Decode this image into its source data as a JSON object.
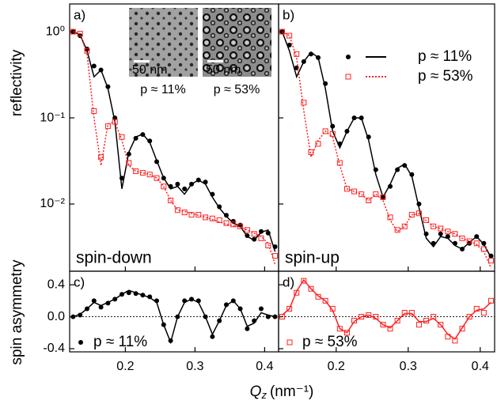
{
  "xlabel": {
    "symbol": "Q",
    "subscript": "z",
    "unit": "(nm⁻¹)"
  },
  "chart_data": [
    {
      "type": "line",
      "label": "a)",
      "note": "spin-down",
      "ylabel": "reflectivity",
      "log_y": true,
      "x": [
        0.125,
        0.135,
        0.145,
        0.155,
        0.165,
        0.175,
        0.185,
        0.195,
        0.205,
        0.215,
        0.225,
        0.235,
        0.245,
        0.255,
        0.265,
        0.275,
        0.285,
        0.295,
        0.305,
        0.315,
        0.325,
        0.335,
        0.345,
        0.355,
        0.365,
        0.375,
        0.385,
        0.395,
        0.405,
        0.415
      ],
      "xlim": [
        0.12,
        0.42
      ],
      "xticks": [
        0.2,
        0.3,
        0.4
      ],
      "x_tick_labels": false,
      "ylim": [
        0.00166,
        2.1
      ],
      "yticks": [
        {
          "value": 1,
          "label": "10⁰"
        },
        {
          "value": 0.1,
          "label": "10⁻¹"
        },
        {
          "value": 0.01,
          "label": "10⁻²"
        }
      ],
      "y_tick_labels": true,
      "insets": [
        {
          "scale": "50 nm",
          "caption": "p ≈ 11%"
        },
        {
          "scale": "50 nm",
          "caption": "p ≈ 53%"
        }
      ],
      "series": [
        {
          "name": "p ≈ 11%",
          "color": "#000000",
          "marker": "circle",
          "values": [
            1.0,
            0.9,
            0.63,
            0.4,
            0.36,
            0.23,
            0.1,
            0.02,
            0.038,
            0.058,
            0.064,
            0.054,
            0.031,
            0.02,
            0.016,
            0.017,
            0.015,
            0.017,
            0.019,
            0.018,
            0.013,
            0.0093,
            0.0074,
            0.0063,
            0.0057,
            0.0043,
            0.0039,
            0.0048,
            0.0046,
            0.0032
          ],
          "fit": {
            "style": "solid",
            "values": [
              1.0,
              0.92,
              0.6,
              0.3,
              0.36,
              0.22,
              0.09,
              0.015,
              0.04,
              0.06,
              0.065,
              0.052,
              0.032,
              0.02,
              0.015,
              0.016,
              0.013,
              0.017,
              0.019,
              0.017,
              0.012,
              0.009,
              0.0072,
              0.006,
              0.0055,
              0.0042,
              0.0038,
              0.0047,
              0.005,
              0.0028
            ]
          }
        },
        {
          "name": "p ≈ 53%",
          "color": "#ff2020",
          "marker": "square",
          "values": [
            1.0,
            0.95,
            0.6,
            0.12,
            0.035,
            0.08,
            0.09,
            0.06,
            0.03,
            0.024,
            0.023,
            0.022,
            0.02,
            0.016,
            0.011,
            0.0085,
            0.008,
            0.0075,
            0.0075,
            0.007,
            0.0068,
            0.0065,
            0.006,
            0.0058,
            0.0055,
            0.005,
            0.0045,
            0.004,
            0.0033,
            0.0025
          ],
          "fit": {
            "style": "dotted",
            "values": [
              1.0,
              0.95,
              0.55,
              0.1,
              0.028,
              0.085,
              0.09,
              0.055,
              0.028,
              0.024,
              0.023,
              0.022,
              0.02,
              0.016,
              0.011,
              0.0085,
              0.0082,
              0.0078,
              0.0074,
              0.007,
              0.0066,
              0.0062,
              0.0058,
              0.0056,
              0.0054,
              0.005,
              0.0046,
              0.0042,
              0.0035,
              0.002
            ]
          }
        }
      ]
    },
    {
      "type": "line",
      "label": "b)",
      "note": "spin-up",
      "log_y": true,
      "legend": "upper right",
      "legend_shows_fit": true,
      "x": [
        0.125,
        0.135,
        0.145,
        0.155,
        0.165,
        0.175,
        0.185,
        0.195,
        0.205,
        0.215,
        0.225,
        0.235,
        0.245,
        0.255,
        0.265,
        0.275,
        0.285,
        0.295,
        0.305,
        0.315,
        0.325,
        0.335,
        0.345,
        0.355,
        0.365,
        0.375,
        0.385,
        0.395,
        0.405,
        0.415
      ],
      "xlim": [
        0.12,
        0.42
      ],
      "xticks": [
        0.2,
        0.3,
        0.4
      ],
      "x_tick_labels": false,
      "ylim": [
        0.00166,
        2.1
      ],
      "yticks": [
        1,
        0.1,
        0.01
      ],
      "y_tick_labels": false,
      "series": [
        {
          "name": "p ≈ 11%",
          "color": "#000000",
          "marker": "circle",
          "values": [
            1.0,
            0.7,
            0.38,
            0.45,
            0.55,
            0.5,
            0.25,
            0.08,
            0.05,
            0.07,
            0.1,
            0.1,
            0.06,
            0.025,
            0.012,
            0.016,
            0.025,
            0.028,
            0.022,
            0.01,
            0.0045,
            0.0035,
            0.0045,
            0.0042,
            0.0035,
            0.003,
            0.0035,
            0.0042,
            0.0035,
            0.0025
          ],
          "fit": {
            "style": "solid",
            "values": [
              1.0,
              0.6,
              0.3,
              0.45,
              0.58,
              0.5,
              0.22,
              0.07,
              0.045,
              0.07,
              0.1,
              0.1,
              0.055,
              0.022,
              0.012,
              0.017,
              0.026,
              0.029,
              0.021,
              0.009,
              0.004,
              0.0032,
              0.0042,
              0.004,
              0.0033,
              0.003,
              0.0036,
              0.0042,
              0.0034,
              0.0024
            ]
          }
        },
        {
          "name": "p ≈ 53%",
          "color": "#ff2020",
          "marker": "square",
          "values": [
            1.0,
            0.9,
            0.55,
            0.15,
            0.04,
            0.05,
            0.07,
            0.065,
            0.03,
            0.015,
            0.014,
            0.013,
            0.011,
            0.013,
            0.012,
            0.007,
            0.005,
            0.0055,
            0.0075,
            0.0078,
            0.0065,
            0.0055,
            0.0052,
            0.0048,
            0.0045,
            0.004,
            0.0037,
            0.0035,
            0.003,
            0.0022
          ],
          "fit": {
            "style": "dotted",
            "values": [
              1.0,
              0.9,
              0.5,
              0.12,
              0.035,
              0.055,
              0.07,
              0.06,
              0.028,
              0.015,
              0.014,
              0.013,
              0.011,
              0.013,
              0.011,
              0.0065,
              0.0048,
              0.0055,
              0.0075,
              0.0077,
              0.0064,
              0.0055,
              0.0052,
              0.0048,
              0.0045,
              0.004,
              0.0037,
              0.0034,
              0.0028,
              0.0018
            ]
          }
        }
      ]
    },
    {
      "type": "line",
      "label": "c)",
      "ylabel": "spin asymmetry",
      "zero_line": true,
      "legend": "lower left",
      "legend_shows_fit": false,
      "x": [
        0.125,
        0.135,
        0.145,
        0.155,
        0.165,
        0.175,
        0.185,
        0.195,
        0.205,
        0.215,
        0.225,
        0.235,
        0.245,
        0.255,
        0.265,
        0.275,
        0.285,
        0.295,
        0.305,
        0.315,
        0.325,
        0.335,
        0.345,
        0.355,
        0.365,
        0.375,
        0.385,
        0.395,
        0.405,
        0.415
      ],
      "xlim": [
        0.12,
        0.42
      ],
      "xticks": [
        0.2,
        0.3,
        0.4
      ],
      "x_tick_labels": true,
      "ylim": [
        -0.44,
        0.57
      ],
      "yticks": [
        0.4,
        {
          "value": 0,
          "label": "0.0"
        },
        {
          "value": -0.4,
          "label": "-0.4"
        }
      ],
      "y_tick_labels": true,
      "series": [
        {
          "name": "p ≈ 11%",
          "color": "#000000",
          "marker": "circle",
          "values": [
            0.0,
            0.02,
            0.1,
            0.2,
            0.12,
            0.17,
            0.22,
            0.28,
            0.3,
            0.29,
            0.27,
            0.25,
            0.2,
            -0.1,
            -0.3,
            0.0,
            0.2,
            0.22,
            0.2,
            0.0,
            -0.25,
            -0.05,
            0.15,
            0.2,
            0.1,
            -0.15,
            -0.05,
            0.1,
            0.0,
            0.0
          ],
          "fit": {
            "style": "solid",
            "values": [
              0.0,
              0.03,
              0.1,
              0.18,
              0.14,
              0.18,
              0.22,
              0.28,
              0.33,
              0.3,
              0.27,
              0.24,
              0.18,
              -0.1,
              -0.32,
              0.0,
              0.18,
              0.22,
              0.18,
              0.0,
              -0.22,
              -0.05,
              0.14,
              0.2,
              0.1,
              -0.12,
              -0.08,
              0.05,
              0.02,
              0.0
            ]
          }
        }
      ]
    },
    {
      "type": "line",
      "label": "d)",
      "zero_line": true,
      "legend": "lower left",
      "legend_shows_fit": false,
      "x": [
        0.125,
        0.135,
        0.145,
        0.155,
        0.165,
        0.175,
        0.185,
        0.195,
        0.205,
        0.215,
        0.225,
        0.235,
        0.245,
        0.255,
        0.265,
        0.275,
        0.285,
        0.295,
        0.305,
        0.315,
        0.325,
        0.335,
        0.345,
        0.355,
        0.365,
        0.375,
        0.385,
        0.395,
        0.405,
        0.415
      ],
      "xlim": [
        0.12,
        0.42
      ],
      "xticks": [
        0.2,
        0.3,
        0.4
      ],
      "x_tick_labels": true,
      "ylim": [
        -0.44,
        0.57
      ],
      "yticks": [
        0.4,
        0,
        -0.4
      ],
      "y_tick_labels": false,
      "series": [
        {
          "name": "p ≈ 53%",
          "color": "#ff2020",
          "marker": "square",
          "values": [
            0.0,
            0.1,
            0.3,
            0.45,
            0.35,
            0.25,
            0.2,
            0.1,
            -0.15,
            -0.2,
            -0.05,
            0.0,
            0.02,
            0.0,
            -0.1,
            -0.15,
            -0.05,
            0.05,
            0.05,
            -0.1,
            -0.05,
            0.0,
            -0.1,
            -0.25,
            -0.3,
            -0.15,
            0.0,
            0.1,
            0.05,
            0.2
          ],
          "fit": {
            "style": "solid",
            "values": [
              0.02,
              0.1,
              0.32,
              0.46,
              0.35,
              0.26,
              0.2,
              0.08,
              -0.15,
              -0.2,
              -0.06,
              0.0,
              0.02,
              -0.02,
              -0.1,
              -0.14,
              -0.05,
              0.04,
              0.04,
              -0.06,
              -0.06,
              -0.02,
              -0.1,
              -0.22,
              -0.28,
              -0.14,
              0.0,
              0.08,
              0.1,
              0.18
            ]
          }
        }
      ]
    }
  ]
}
